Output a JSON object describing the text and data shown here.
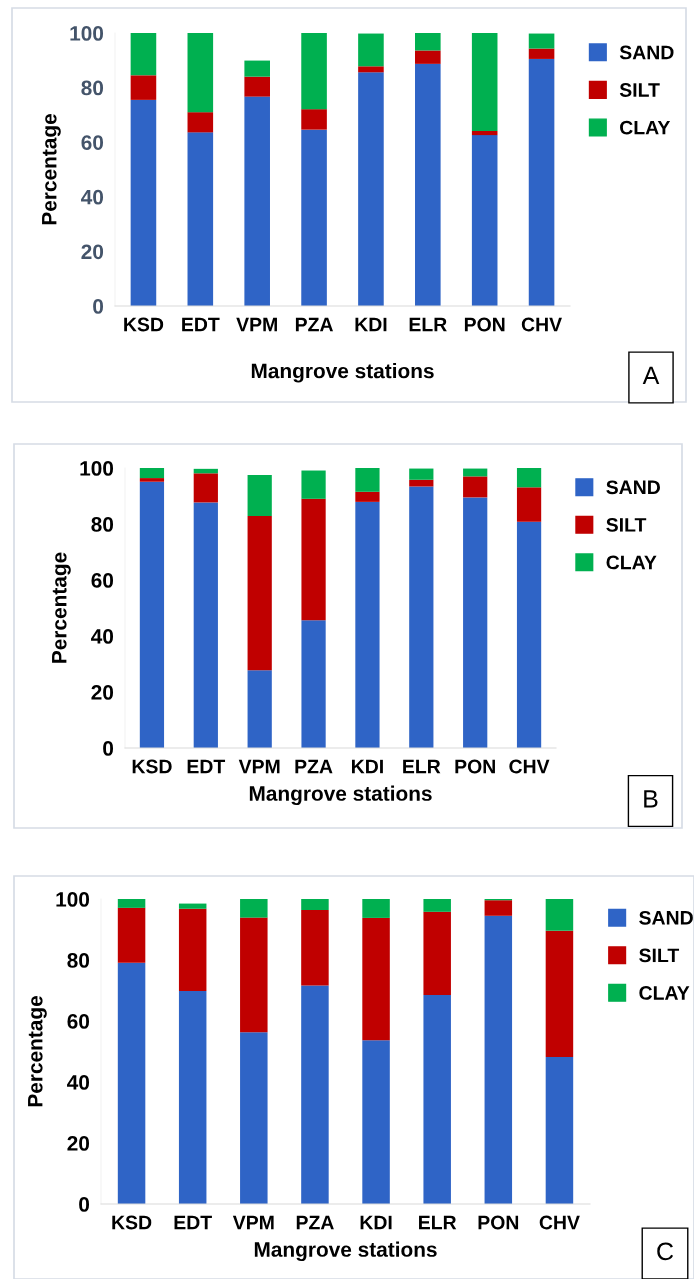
{
  "chart_data": [
    {
      "type": "bar",
      "stacked": true,
      "xlabel": "Mangrove stations",
      "ylabel": "Percentage",
      "categories": [
        "KSD",
        "EDT",
        "VPM",
        "PZA",
        "KDI",
        "ELR",
        "PON",
        "CHV"
      ],
      "series": [
        {
          "name": "SAND",
          "color": "#2f64c6",
          "values": [
            75.5,
            63.6,
            76.7,
            64.6,
            85.6,
            88.7,
            62.6,
            90.5
          ]
        },
        {
          "name": "SILT",
          "color": "#c00000",
          "values": [
            9.0,
            7.4,
            7.3,
            7.5,
            2.2,
            4.9,
            1.5,
            3.8
          ]
        },
        {
          "name": "CLAY",
          "color": "#00b050",
          "values": [
            15.5,
            29.0,
            5.9,
            27.9,
            12.0,
            6.4,
            35.9,
            5.5
          ]
        }
      ],
      "ylim": [
        0,
        100
      ],
      "yticks": [
        0,
        20,
        40,
        60,
        80,
        100
      ],
      "grid": false,
      "legend": "right",
      "annotations": [
        "A"
      ]
    },
    {
      "type": "bar",
      "stacked": true,
      "xlabel": "Mangrove stations",
      "ylabel": "Percentage",
      "categories": [
        "KSD",
        "EDT",
        "VPM",
        "PZA",
        "KDI",
        "ELR",
        "PON",
        "CHV"
      ],
      "series": [
        {
          "name": "SAND",
          "color": "#2f64c6",
          "values": [
            95.1,
            87.7,
            27.8,
            45.6,
            87.9,
            93.4,
            89.5,
            80.8
          ]
        },
        {
          "name": "SILT",
          "color": "#c00000",
          "values": [
            1.3,
            10.4,
            55.1,
            43.4,
            3.6,
            2.4,
            7.5,
            12.3
          ]
        },
        {
          "name": "CLAY",
          "color": "#00b050",
          "values": [
            3.6,
            1.6,
            14.6,
            10.1,
            8.5,
            4.0,
            2.8,
            6.9
          ]
        }
      ],
      "ylim": [
        0,
        100
      ],
      "yticks": [
        0,
        20,
        40,
        60,
        80,
        100
      ],
      "grid": false,
      "legend": "right",
      "annotations": [
        "B"
      ]
    },
    {
      "type": "bar",
      "stacked": true,
      "xlabel": "Mangrove stations",
      "ylabel": "Percentage",
      "categories": [
        "KSD",
        "EDT",
        "VPM",
        "PZA",
        "KDI",
        "ELR",
        "PON",
        "CHV"
      ],
      "series": [
        {
          "name": "SAND",
          "color": "#2f64c6",
          "values": [
            79.1,
            69.8,
            56.3,
            71.6,
            53.7,
            68.5,
            94.5,
            48.2
          ]
        },
        {
          "name": "SILT",
          "color": "#c00000",
          "values": [
            18.0,
            27.0,
            37.6,
            24.8,
            40.1,
            27.3,
            5.1,
            41.4
          ]
        },
        {
          "name": "CLAY",
          "color": "#00b050",
          "values": [
            2.9,
            1.7,
            6.1,
            3.6,
            6.2,
            4.2,
            0.4,
            10.4
          ]
        }
      ],
      "ylim": [
        0,
        100
      ],
      "yticks": [
        0,
        20,
        40,
        60,
        80,
        100
      ],
      "grid": false,
      "legend": "right",
      "annotations": [
        "C"
      ]
    }
  ]
}
